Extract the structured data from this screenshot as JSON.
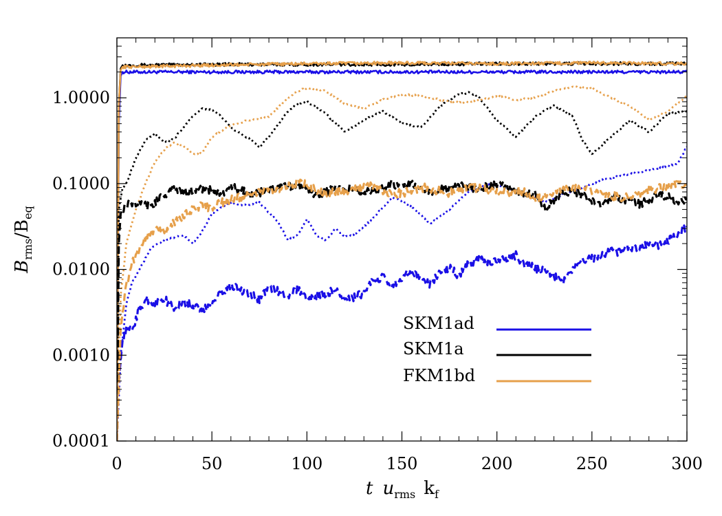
{
  "chart_data": {
    "type": "line",
    "y_scale": "log",
    "xlim": [
      0,
      300
    ],
    "ylim": [
      0.0001,
      5
    ],
    "x_ticks": [
      0,
      50,
      100,
      150,
      200,
      250,
      300
    ],
    "x_tick_labels": [
      "0",
      "50",
      "100",
      "150",
      "200",
      "250",
      "300"
    ],
    "y_ticks": [
      0.0001,
      0.001,
      0.01,
      0.1,
      1
    ],
    "y_tick_labels": [
      "0.0001",
      "0.0010",
      "0.0100",
      "0.1000",
      "1.0000"
    ],
    "xlabel": {
      "italic": "t",
      "var": "u",
      "var_sub": "rms",
      "k": "k",
      "k_sub": "f"
    },
    "ylabel": {
      "var": "B",
      "var_sub": "rms",
      "den": "B",
      "den_sub": "eq"
    },
    "grid": false,
    "legend_position": "lower-right",
    "legend": [
      {
        "label": "SKM1ad",
        "color": "#1a0fe6"
      },
      {
        "label": "SKM1a",
        "color": "#000000"
      },
      {
        "label": "FKM1bd",
        "color": "#e6a04b"
      }
    ],
    "series": [
      {
        "name": "SKM1ad",
        "style": "solid",
        "color": "#1a0fe6",
        "x": [
          0,
          1,
          2,
          3,
          5,
          10,
          50,
          100,
          150,
          200,
          250,
          300
        ],
        "y": [
          0.0001,
          0.5,
          1.8,
          2.0,
          2.0,
          2.0,
          2.0,
          2.0,
          2.0,
          2.0,
          2.0,
          2.0
        ]
      },
      {
        "name": "SKM1a",
        "style": "solid",
        "color": "#000000",
        "x": [
          0,
          1,
          2,
          3,
          5,
          10,
          50,
          100,
          150,
          200,
          250,
          300
        ],
        "y": [
          0.0001,
          0.8,
          2.2,
          2.4,
          2.4,
          2.4,
          2.45,
          2.45,
          2.45,
          2.5,
          2.5,
          2.5
        ]
      },
      {
        "name": "FKM1bd",
        "style": "solid",
        "color": "#e6a04b",
        "x": [
          0,
          1,
          2,
          3,
          5,
          10,
          50,
          100,
          150,
          200,
          250,
          300
        ],
        "y": [
          0.0001,
          0.8,
          2.1,
          2.3,
          2.3,
          2.3,
          2.4,
          2.5,
          2.55,
          2.5,
          2.55,
          2.5
        ]
      },
      {
        "name": "SKM1ad",
        "style": "dotted",
        "color": "#1a0fe6",
        "x": [
          0,
          2,
          5,
          8,
          12,
          18,
          25,
          35,
          40,
          45,
          50,
          60,
          65,
          75,
          85,
          90,
          95,
          100,
          105,
          110,
          115,
          120,
          125,
          135,
          145,
          155,
          165,
          175,
          185,
          195,
          205,
          215,
          225,
          235,
          245,
          255,
          270,
          285,
          295,
          300
        ],
        "y": [
          0.0001,
          0.001,
          0.004,
          0.007,
          0.01,
          0.018,
          0.022,
          0.025,
          0.02,
          0.028,
          0.045,
          0.06,
          0.055,
          0.06,
          0.035,
          0.022,
          0.025,
          0.038,
          0.025,
          0.022,
          0.03,
          0.024,
          0.025,
          0.04,
          0.07,
          0.055,
          0.034,
          0.05,
          0.08,
          0.1,
          0.09,
          0.075,
          0.06,
          0.075,
          0.09,
          0.11,
          0.13,
          0.15,
          0.17,
          0.27
        ]
      },
      {
        "name": "SKM1a",
        "style": "dotted",
        "color": "#000000",
        "x": [
          0,
          1,
          3,
          5,
          10,
          15,
          20,
          25,
          30,
          35,
          40,
          45,
          50,
          55,
          60,
          70,
          75,
          80,
          90,
          95,
          100,
          110,
          120,
          130,
          140,
          150,
          160,
          170,
          180,
          185,
          190,
          200,
          210,
          220,
          230,
          240,
          245,
          250,
          260,
          270,
          280,
          290,
          300
        ],
        "y": [
          0.0001,
          0.05,
          0.09,
          0.1,
          0.2,
          0.32,
          0.38,
          0.3,
          0.33,
          0.45,
          0.62,
          0.75,
          0.72,
          0.6,
          0.45,
          0.33,
          0.27,
          0.35,
          0.7,
          0.85,
          0.9,
          0.65,
          0.4,
          0.55,
          0.7,
          0.5,
          0.45,
          0.8,
          1.1,
          1.15,
          1.05,
          0.55,
          0.35,
          0.6,
          0.82,
          0.6,
          0.32,
          0.22,
          0.35,
          0.55,
          0.4,
          0.65,
          0.7
        ]
      },
      {
        "name": "FKM1bd",
        "style": "dotted",
        "color": "#e6a04b",
        "x": [
          0,
          2,
          5,
          10,
          15,
          20,
          25,
          30,
          35,
          40,
          45,
          50,
          60,
          70,
          80,
          90,
          95,
          100,
          110,
          120,
          130,
          140,
          150,
          160,
          170,
          180,
          190,
          200,
          210,
          220,
          230,
          240,
          250,
          260,
          270,
          280,
          290,
          300
        ],
        "y": [
          0.0001,
          0.005,
          0.02,
          0.05,
          0.1,
          0.18,
          0.25,
          0.3,
          0.28,
          0.22,
          0.23,
          0.35,
          0.48,
          0.55,
          0.6,
          1.0,
          1.2,
          1.3,
          1.2,
          0.85,
          0.75,
          0.95,
          1.1,
          1.05,
          0.95,
          0.88,
          0.92,
          1.05,
          0.95,
          1.0,
          1.2,
          1.35,
          1.3,
          1.0,
          0.8,
          0.55,
          0.7,
          1.05
        ]
      },
      {
        "name": "SKM1ad",
        "style": "dashed",
        "color": "#1a0fe6",
        "x": [
          0,
          1,
          3,
          5,
          8,
          12,
          16,
          20,
          25,
          30,
          35,
          40,
          45,
          50,
          55,
          60,
          65,
          70,
          75,
          80,
          85,
          90,
          95,
          100,
          105,
          110,
          115,
          120,
          125,
          130,
          135,
          140,
          145,
          150,
          155,
          160,
          165,
          170,
          175,
          180,
          185,
          190,
          195,
          200,
          205,
          210,
          215,
          220,
          225,
          230,
          235,
          240,
          245,
          250,
          255,
          260,
          265,
          270,
          275,
          280,
          285,
          290,
          295,
          300
        ],
        "y": [
          0.0001,
          0.0005,
          0.0015,
          0.002,
          0.002,
          0.0035,
          0.0045,
          0.004,
          0.0045,
          0.0035,
          0.0042,
          0.0038,
          0.0032,
          0.0042,
          0.0055,
          0.0065,
          0.0058,
          0.0052,
          0.0045,
          0.0062,
          0.0055,
          0.005,
          0.006,
          0.0045,
          0.0048,
          0.0052,
          0.0058,
          0.0042,
          0.0048,
          0.0052,
          0.0075,
          0.008,
          0.0065,
          0.0082,
          0.0095,
          0.0075,
          0.0068,
          0.0095,
          0.0105,
          0.0085,
          0.0115,
          0.013,
          0.0125,
          0.012,
          0.0135,
          0.0145,
          0.011,
          0.0105,
          0.0095,
          0.0082,
          0.0072,
          0.0105,
          0.0125,
          0.0135,
          0.0145,
          0.0165,
          0.016,
          0.0185,
          0.0175,
          0.0195,
          0.0185,
          0.0215,
          0.0255,
          0.032
        ]
      },
      {
        "name": "SKM1a",
        "style": "dashed",
        "color": "#000000",
        "x": [
          0,
          1,
          2,
          4,
          8,
          12,
          16,
          20,
          25,
          30,
          35,
          40,
          45,
          50,
          55,
          60,
          65,
          70,
          75,
          80,
          85,
          90,
          95,
          100,
          105,
          110,
          115,
          120,
          125,
          130,
          135,
          140,
          145,
          150,
          155,
          160,
          165,
          170,
          175,
          180,
          185,
          190,
          195,
          200,
          205,
          210,
          215,
          220,
          225,
          230,
          235,
          240,
          245,
          250,
          255,
          260,
          265,
          270,
          275,
          280,
          285,
          290,
          295,
          300
        ],
        "y": [
          0.0001,
          0.02,
          0.045,
          0.055,
          0.06,
          0.058,
          0.055,
          0.06,
          0.075,
          0.085,
          0.08,
          0.085,
          0.088,
          0.082,
          0.078,
          0.09,
          0.085,
          0.075,
          0.078,
          0.085,
          0.088,
          0.092,
          0.095,
          0.085,
          0.075,
          0.08,
          0.09,
          0.085,
          0.09,
          0.078,
          0.085,
          0.09,
          0.1,
          0.092,
          0.098,
          0.085,
          0.08,
          0.085,
          0.09,
          0.095,
          0.092,
          0.088,
          0.095,
          0.098,
          0.092,
          0.082,
          0.078,
          0.075,
          0.052,
          0.065,
          0.078,
          0.085,
          0.072,
          0.065,
          0.058,
          0.07,
          0.068,
          0.062,
          0.058,
          0.065,
          0.072,
          0.07,
          0.062,
          0.066
        ]
      },
      {
        "name": "FKM1bd",
        "style": "dashed",
        "color": "#e6a04b",
        "x": [
          0,
          2,
          4,
          6,
          8,
          10,
          13,
          16,
          20,
          25,
          30,
          35,
          40,
          45,
          50,
          55,
          60,
          65,
          70,
          75,
          80,
          85,
          90,
          95,
          100,
          105,
          110,
          115,
          120,
          125,
          130,
          135,
          140,
          145,
          150,
          155,
          160,
          165,
          170,
          175,
          180,
          185,
          190,
          195,
          200,
          205,
          210,
          215,
          220,
          225,
          230,
          235,
          240,
          245,
          250,
          255,
          260,
          265,
          270,
          275,
          280,
          285,
          290,
          295,
          300
        ],
        "y": [
          0.0001,
          0.002,
          0.005,
          0.008,
          0.012,
          0.015,
          0.02,
          0.025,
          0.03,
          0.028,
          0.035,
          0.042,
          0.05,
          0.055,
          0.052,
          0.06,
          0.065,
          0.07,
          0.075,
          0.08,
          0.085,
          0.088,
          0.095,
          0.1,
          0.098,
          0.085,
          0.075,
          0.082,
          0.078,
          0.085,
          0.09,
          0.095,
          0.082,
          0.075,
          0.078,
          0.082,
          0.09,
          0.088,
          0.082,
          0.078,
          0.085,
          0.09,
          0.088,
          0.085,
          0.082,
          0.078,
          0.085,
          0.08,
          0.065,
          0.072,
          0.08,
          0.085,
          0.09,
          0.088,
          0.082,
          0.075,
          0.072,
          0.07,
          0.068,
          0.078,
          0.085,
          0.088,
          0.09,
          0.105,
          0.095
        ]
      }
    ]
  }
}
